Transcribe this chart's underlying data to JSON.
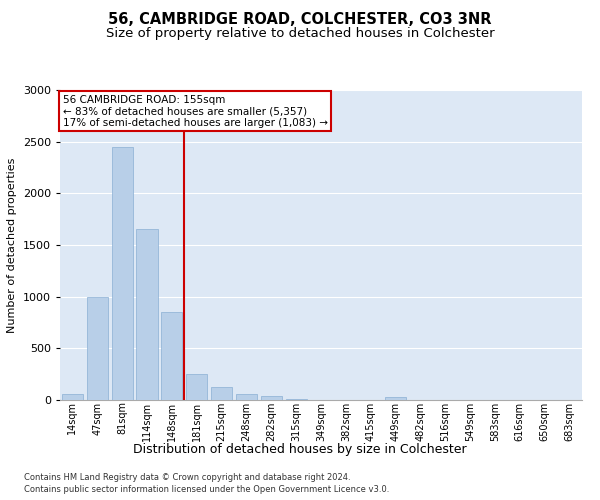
{
  "title": "56, CAMBRIDGE ROAD, COLCHESTER, CO3 3NR",
  "subtitle": "Size of property relative to detached houses in Colchester",
  "xlabel": "Distribution of detached houses by size in Colchester",
  "ylabel": "Number of detached properties",
  "categories": [
    "14sqm",
    "47sqm",
    "81sqm",
    "114sqm",
    "148sqm",
    "181sqm",
    "215sqm",
    "248sqm",
    "282sqm",
    "315sqm",
    "349sqm",
    "382sqm",
    "415sqm",
    "449sqm",
    "482sqm",
    "516sqm",
    "549sqm",
    "583sqm",
    "616sqm",
    "650sqm",
    "683sqm"
  ],
  "values": [
    55,
    1000,
    2450,
    1650,
    850,
    250,
    130,
    60,
    40,
    10,
    0,
    0,
    0,
    30,
    0,
    0,
    0,
    0,
    0,
    0,
    0
  ],
  "bar_color": "#b8cfe8",
  "bar_edge_color": "#8aafd4",
  "red_line_x": 4.5,
  "annotation_line1": "56 CAMBRIDGE ROAD: 155sqm",
  "annotation_line2": "← 83% of detached houses are smaller (5,357)",
  "annotation_line3": "17% of semi-detached houses are larger (1,083) →",
  "annotation_box_facecolor": "#ffffff",
  "annotation_box_edgecolor": "#cc0000",
  "red_line_color": "#cc0000",
  "background_color": "#dde8f5",
  "ylim": [
    0,
    3000
  ],
  "yticks": [
    0,
    500,
    1000,
    1500,
    2000,
    2500,
    3000
  ],
  "footer1": "Contains HM Land Registry data © Crown copyright and database right 2024.",
  "footer2": "Contains public sector information licensed under the Open Government Licence v3.0.",
  "title_fontsize": 10.5,
  "subtitle_fontsize": 9.5,
  "xlabel_fontsize": 9,
  "ylabel_fontsize": 8,
  "tick_fontsize": 7,
  "annot_fontsize": 7.5
}
